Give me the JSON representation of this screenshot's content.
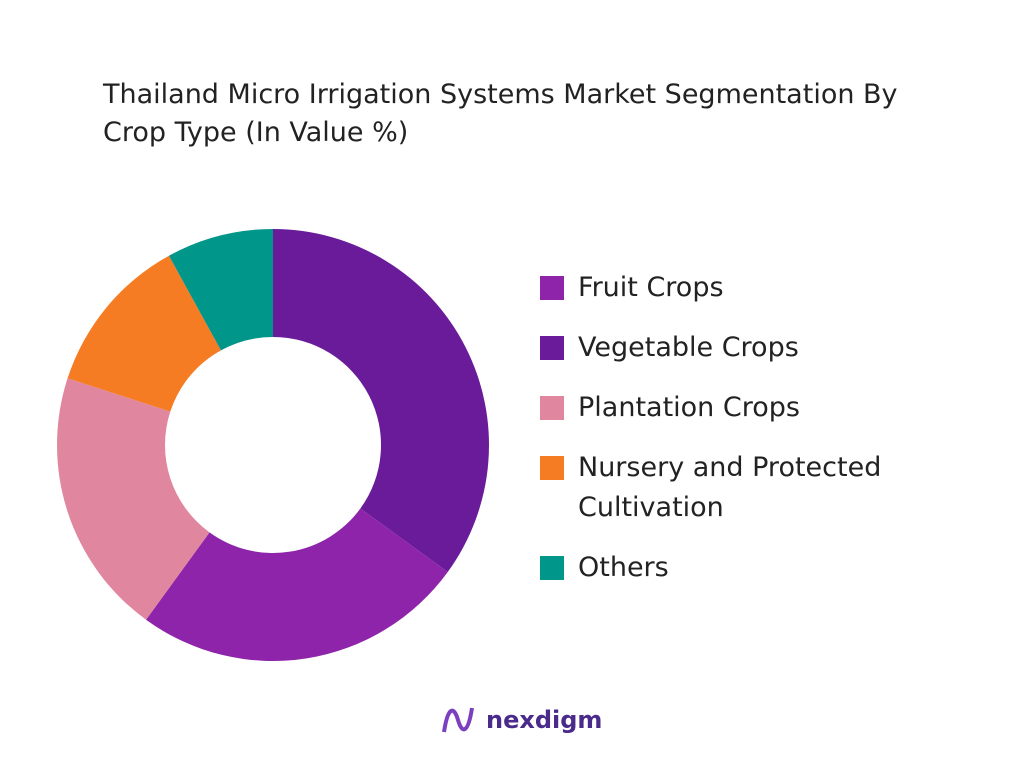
{
  "chart_data": {
    "type": "donut",
    "title": "Thailand Micro Irrigation Systems Market Segmentation By Crop Type (In Value %)",
    "categories": [
      "Fruit Crops",
      "Vegetable Crops",
      "Plantation Crops",
      "Nursery and Protected Cultivation",
      "Others"
    ],
    "values": [
      25,
      35,
      20,
      12,
      8
    ],
    "colors": [
      "#8e24aa",
      "#6a1b9a",
      "#e0879f",
      "#f57c22",
      "#00968a"
    ]
  },
  "logo": "nexdigm"
}
